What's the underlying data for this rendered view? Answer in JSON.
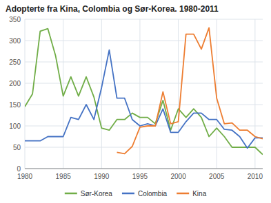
{
  "chart_data": {
    "type": "line",
    "title": "Adopterte fra Kina, Colombia og Sør-Korea. 1980-2011",
    "x": [
      1980,
      1981,
      1982,
      1983,
      1984,
      1985,
      1986,
      1987,
      1988,
      1989,
      1990,
      1991,
      1992,
      1993,
      1994,
      1995,
      1996,
      1997,
      1998,
      1999,
      2000,
      2001,
      2002,
      2003,
      2004,
      2005,
      2006,
      2007,
      2008,
      2009,
      2010,
      2011
    ],
    "series": [
      {
        "name": "Sør-Korea",
        "color": "#70ad47",
        "values": [
          145,
          175,
          322,
          328,
          265,
          170,
          215,
          170,
          215,
          168,
          95,
          90,
          115,
          115,
          130,
          120,
          120,
          105,
          160,
          90,
          140,
          120,
          140,
          120,
          75,
          95,
          75,
          50,
          50,
          50,
          50,
          33
        ]
      },
      {
        "name": "Colombia",
        "color": "#4472c4",
        "values": [
          65,
          65,
          65,
          75,
          75,
          75,
          120,
          115,
          150,
          115,
          190,
          278,
          165,
          165,
          115,
          100,
          105,
          100,
          140,
          85,
          85,
          110,
          130,
          130,
          115,
          115,
          92,
          90,
          75,
          48,
          72,
          72
        ]
      },
      {
        "name": "Kina",
        "color": "#ed7d31",
        "values": [
          null,
          null,
          null,
          null,
          null,
          null,
          null,
          null,
          null,
          null,
          null,
          null,
          38,
          35,
          52,
          97,
          100,
          100,
          180,
          105,
          110,
          315,
          315,
          280,
          330,
          165,
          105,
          107,
          90,
          90,
          75,
          70
        ]
      }
    ],
    "xlim": [
      1980,
      2011
    ],
    "xticks": [
      1980,
      1985,
      1990,
      1995,
      2000,
      2005,
      2010
    ],
    "ylim": [
      0,
      350
    ],
    "yticks": [
      0,
      50,
      100,
      150,
      200,
      250,
      300,
      350
    ],
    "grid": true,
    "legend": "bottom"
  }
}
